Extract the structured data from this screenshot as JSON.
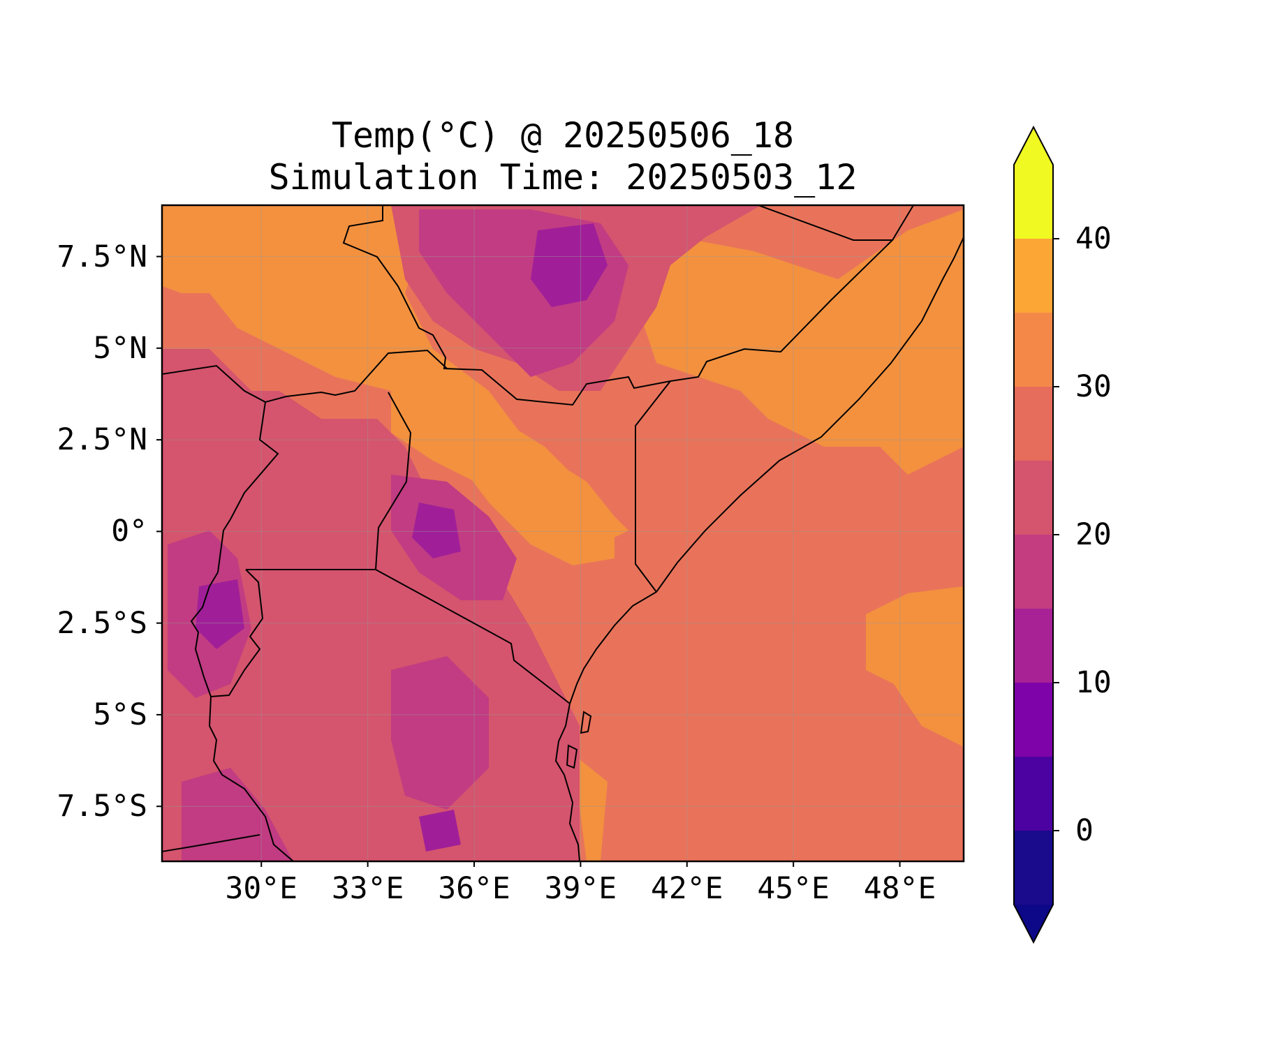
{
  "title": {
    "line1": "Temp(°C) @ 20250506_18",
    "line2": "Simulation Time: 20250503_12"
  },
  "map": {
    "lon_range": [
      27.2,
      49.8
    ],
    "lat_range": [
      -9.0,
      8.9
    ],
    "lon_ticks": [
      {
        "value": 30,
        "label": "30°E"
      },
      {
        "value": 33,
        "label": "33°E"
      },
      {
        "value": 36,
        "label": "36°E"
      },
      {
        "value": 39,
        "label": "39°E"
      },
      {
        "value": 42,
        "label": "42°E"
      },
      {
        "value": 45,
        "label": "45°E"
      },
      {
        "value": 48,
        "label": "48°E"
      }
    ],
    "lat_ticks": [
      {
        "value": 7.5,
        "label": "7.5°N"
      },
      {
        "value": 5,
        "label": "5°N"
      },
      {
        "value": 2.5,
        "label": "2.5°N"
      },
      {
        "value": 0,
        "label": "0°"
      },
      {
        "value": -2.5,
        "label": "2.5°S"
      },
      {
        "value": -5,
        "label": "5°S"
      },
      {
        "value": -7.5,
        "label": "7.5°S"
      }
    ],
    "gridlines": true
  },
  "colorbar": {
    "levels": [
      -5,
      0,
      5,
      10,
      15,
      20,
      25,
      30,
      35,
      40,
      45
    ],
    "colors": [
      "#1a0a8c",
      "#4c02a1",
      "#7e03a8",
      "#a82296",
      "#c33d80",
      "#d5546e",
      "#e66c5c",
      "#f48849",
      "#fca636",
      "#f0f921"
    ],
    "extend_low_color": "#0d0887",
    "extend_high_color": "#f0f921",
    "tick_labels": [
      {
        "value": 0,
        "label": "0"
      },
      {
        "value": 10,
        "label": "10"
      },
      {
        "value": 20,
        "label": "20"
      },
      {
        "value": 30,
        "label": "30"
      },
      {
        "value": 40,
        "label": "40"
      }
    ]
  }
}
